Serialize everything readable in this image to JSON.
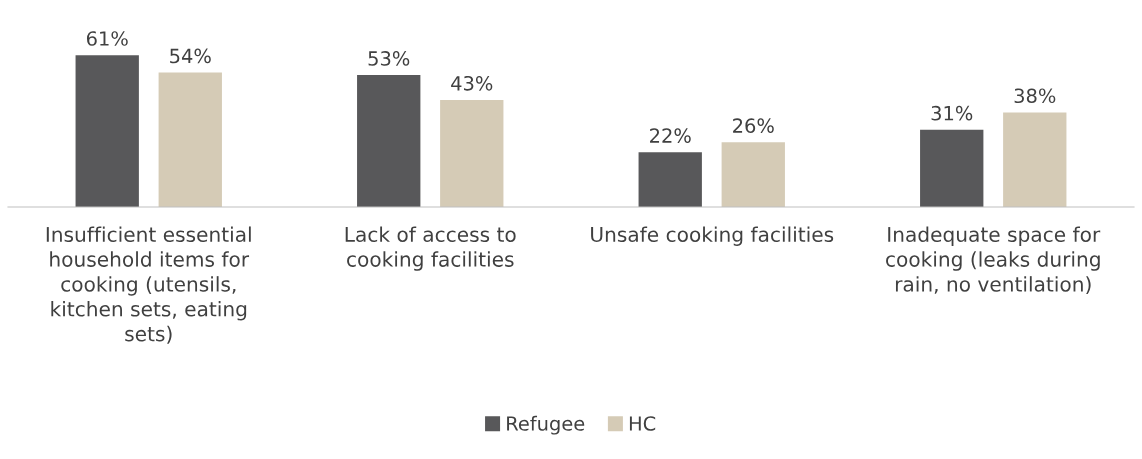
{
  "chart_data": {
    "type": "bar",
    "categories": [
      "Insufficient essential\nhousehold items for\ncooking (utensils,\nkitchen sets, eating\nsets)",
      "Lack of access to\ncooking facilities",
      "Unsafe cooking facilities",
      "Inadequate space for\ncooking (leaks during\nrain, no ventilation)"
    ],
    "series": [
      {
        "name": "Refugee",
        "color": "#58585a",
        "values": [
          61,
          53,
          22,
          31
        ],
        "value_labels": [
          "61%",
          "53%",
          "22%",
          "31%"
        ]
      },
      {
        "name": "HC",
        "color": "#d5cbb6",
        "values": [
          54,
          43,
          26,
          38
        ],
        "value_labels": [
          "54%",
          "43%",
          "26%",
          "38%"
        ]
      }
    ],
    "relative": false,
    "data_labels": false,
    "grid": false,
    "legend": "bottom"
  }
}
